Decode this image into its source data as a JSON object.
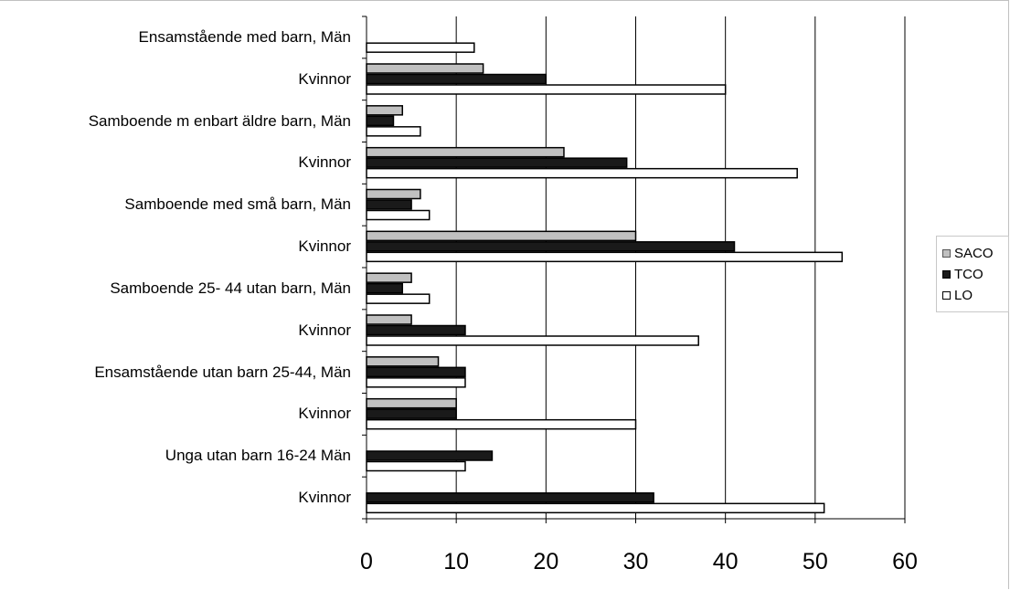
{
  "chart_data": {
    "type": "bar",
    "orientation": "horizontal",
    "categories": [
      "Ensamstående med barn, Män",
      "Kvinnor",
      "Samboende m enbart äldre barn, Män",
      "Kvinnor",
      "Samboende med små barn, Män",
      "Kvinnor",
      "Samboende 25- 44 utan barn, Män",
      "Kvinnor",
      "Ensamstående utan barn 25-44, Män",
      "Kvinnor",
      "Unga utan barn 16-24 Män",
      "Kvinnor"
    ],
    "series": [
      {
        "name": "SACO",
        "color": "#c0c0c0",
        "values": [
          0,
          13,
          4,
          22,
          6,
          30,
          5,
          5,
          8,
          10,
          0,
          0
        ]
      },
      {
        "name": "TCO",
        "color": "#1a1a1a",
        "values": [
          0,
          20,
          3,
          29,
          5,
          41,
          4,
          11,
          11,
          10,
          14,
          32
        ]
      },
      {
        "name": "LO",
        "color": "#ffffff",
        "values": [
          12,
          40,
          6,
          48,
          7,
          53,
          7,
          37,
          11,
          30,
          11,
          51
        ]
      }
    ],
    "xlim": [
      0,
      60
    ],
    "xticks": [
      "0",
      "10",
      "20",
      "30",
      "40",
      "50",
      "60"
    ],
    "grid": "vertical",
    "legend_position": "right"
  }
}
